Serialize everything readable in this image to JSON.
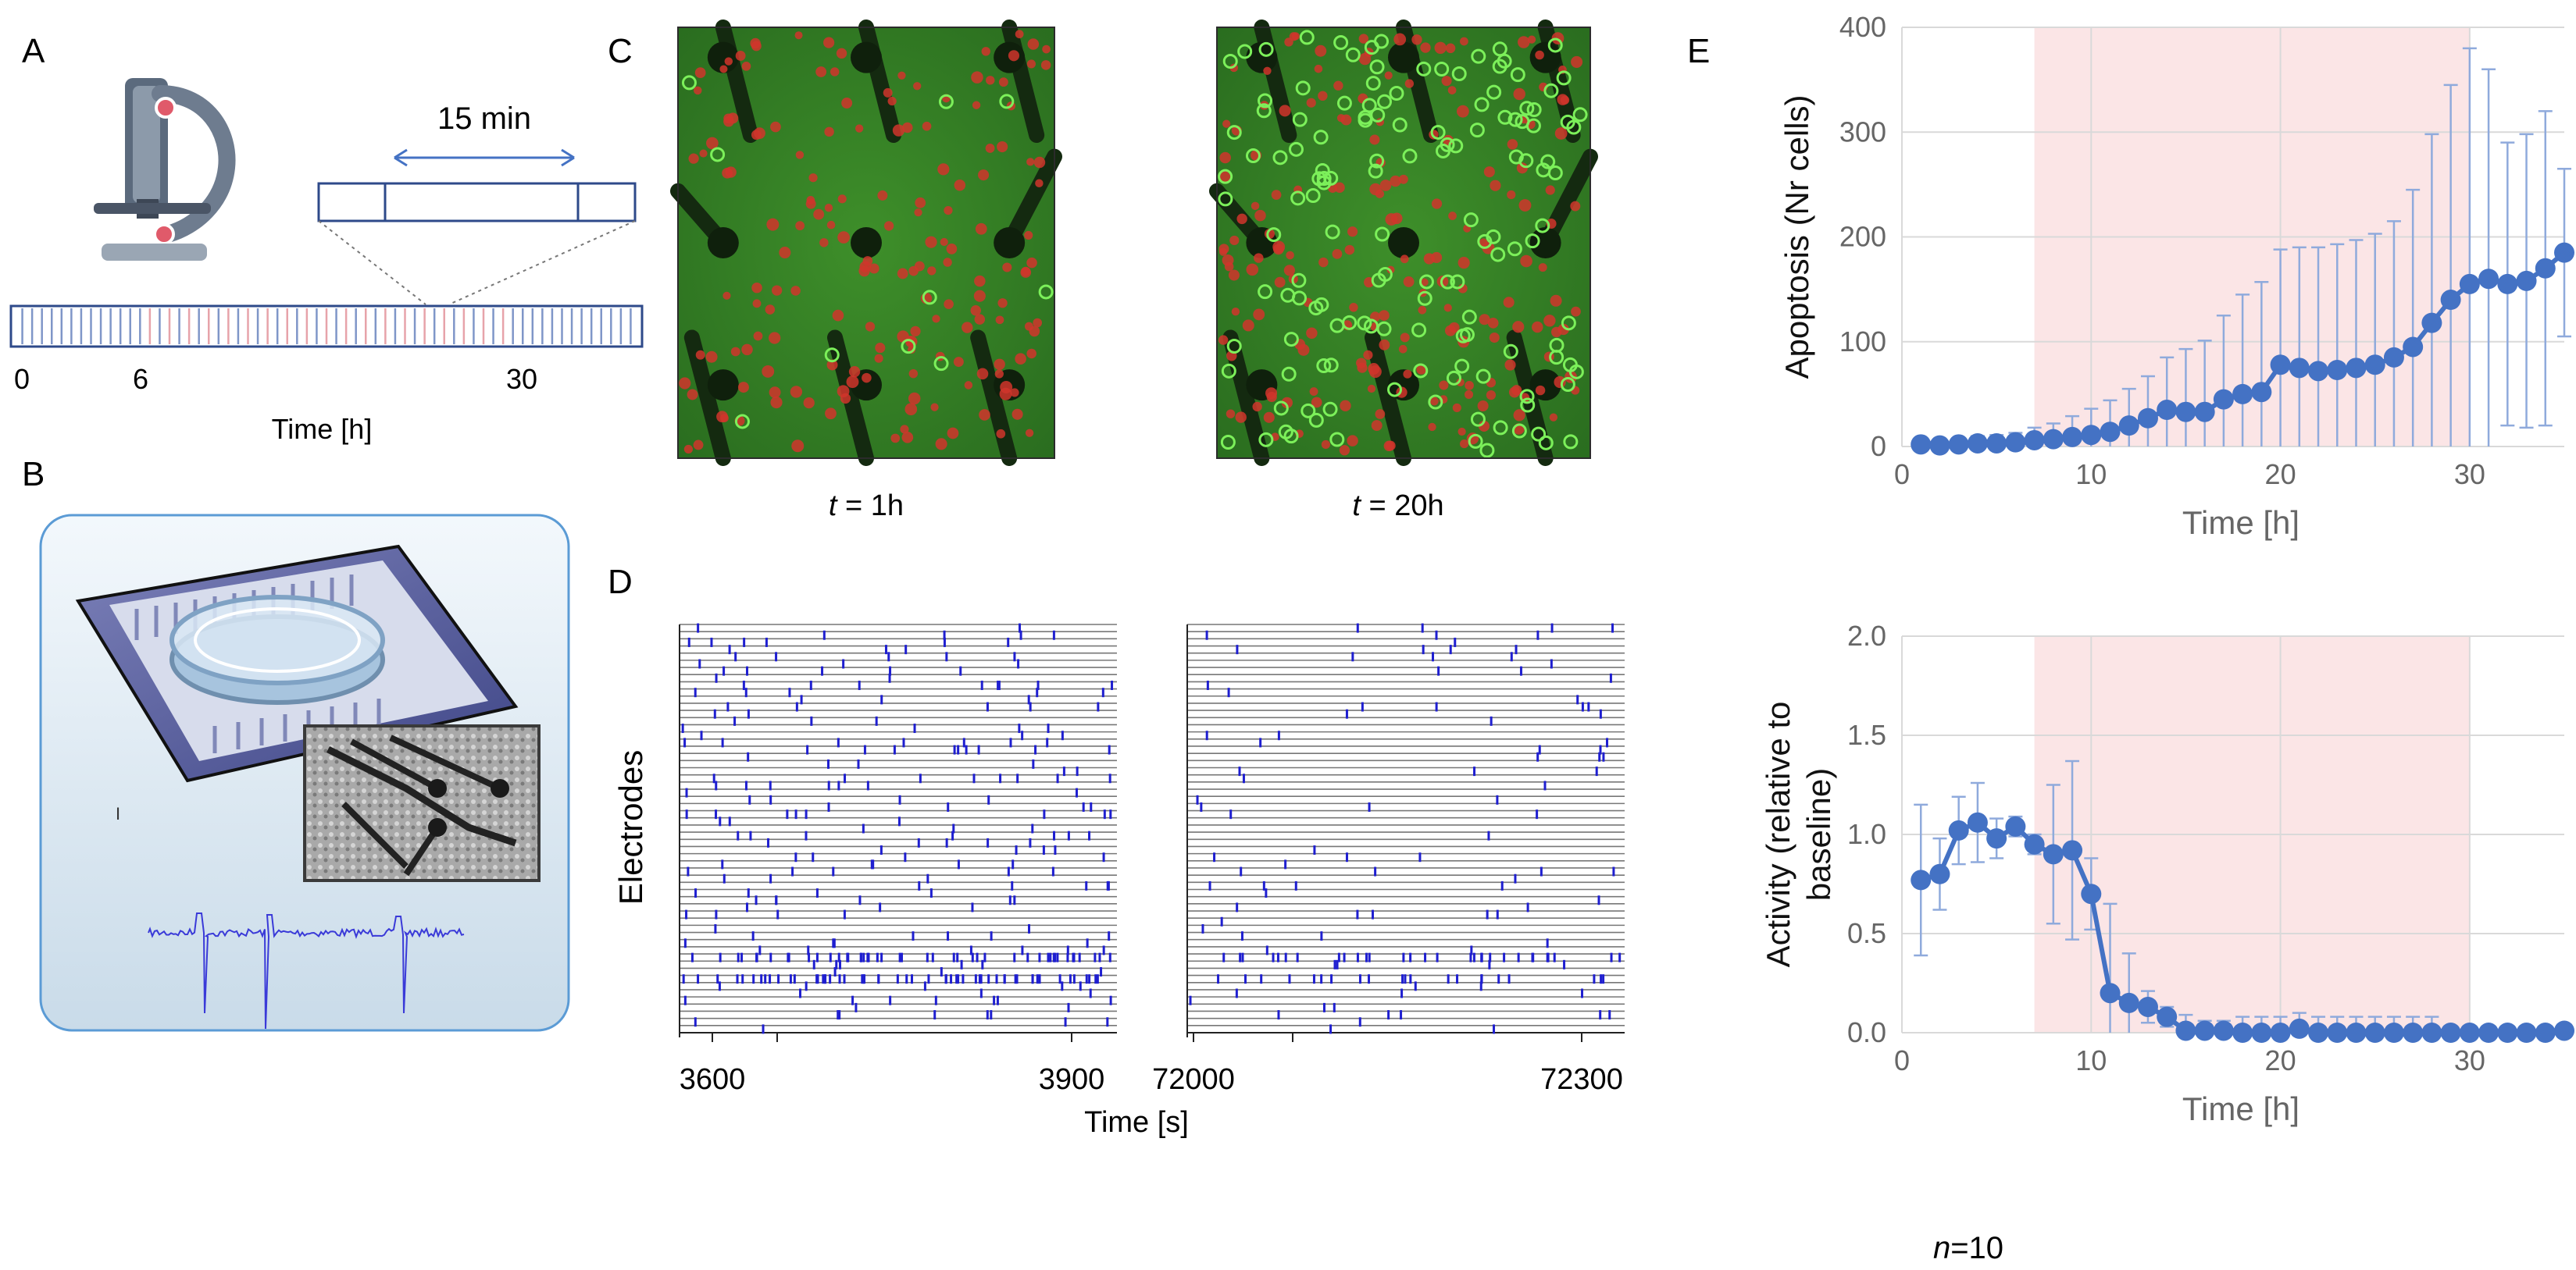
{
  "panels": {
    "A": {
      "letter": "A",
      "interval_label": "15 min",
      "tick_labels": [
        "0",
        "6",
        "30"
      ],
      "axis_label": "Time [h]"
    },
    "B": {
      "letter": "B",
      "mark": "I"
    },
    "C": {
      "letter": "C",
      "t_prefix": "t",
      "captions": [
        " = 1h",
        " = 20h"
      ]
    },
    "D": {
      "letter": "D",
      "ylabel": "Electrodes",
      "xlabel": "Time [s]",
      "left_ticks": [
        "3600",
        "3900"
      ],
      "right_ticks": [
        "72000",
        "72300"
      ]
    },
    "E": {
      "letter": "E",
      "n_italic": "n",
      "n_rest": "=10"
    }
  },
  "colors": {
    "series": "#4472c4",
    "error": "#8faadc",
    "shade": "#fbe5e6",
    "raster_spike": "#1f1fd0",
    "grid": "#d9d9d9"
  },
  "chart_data": [
    {
      "type": "line",
      "title": "",
      "xlabel": "Time [h]",
      "ylabel": "Apoptosis (Nr cells)",
      "xlim": [
        0,
        35
      ],
      "ylim": [
        0,
        400
      ],
      "xticks": [
        0,
        10,
        20,
        30
      ],
      "yticks": [
        0,
        100,
        200,
        300,
        400
      ],
      "shade_x": [
        7,
        30
      ],
      "grid": true,
      "x": [
        1,
        2,
        3,
        4,
        5,
        6,
        7,
        8,
        9,
        10,
        11,
        12,
        13,
        14,
        15,
        16,
        17,
        18,
        19,
        20,
        21,
        22,
        23,
        24,
        25,
        26,
        27,
        28,
        29,
        30,
        31,
        32,
        33,
        34,
        35
      ],
      "series": [
        {
          "name": "Apoptosis",
          "values": [
            2,
            1,
            2,
            3,
            3,
            4,
            6,
            7,
            9,
            11,
            14,
            20,
            27,
            35,
            33,
            33,
            45,
            50,
            52,
            78,
            75,
            72,
            73,
            75,
            78,
            85,
            95,
            118,
            140,
            155,
            160,
            155,
            158,
            170,
            185
          ],
          "error": [
            5,
            5,
            6,
            7,
            8,
            9,
            12,
            15,
            20,
            25,
            30,
            35,
            40,
            50,
            60,
            68,
            80,
            95,
            105,
            110,
            115,
            118,
            120,
            122,
            125,
            130,
            150,
            180,
            205,
            225,
            200,
            135,
            140,
            150,
            80
          ]
        }
      ]
    },
    {
      "type": "line",
      "title": "",
      "xlabel": "Time [h]",
      "ylabel": "Activity (relative to baseline)",
      "xlim": [
        0,
        35
      ],
      "ylim": [
        0,
        2.0
      ],
      "xticks": [
        0,
        10,
        20,
        30
      ],
      "yticks": [
        0.0,
        0.5,
        1.0,
        1.5,
        2.0
      ],
      "ytick_labels": [
        "0.0",
        "0.5",
        "1.0",
        "1.5",
        "2.0"
      ],
      "shade_x": [
        7,
        30
      ],
      "grid": true,
      "x": [
        1,
        2,
        3,
        4,
        5,
        6,
        7,
        8,
        9,
        10,
        11,
        12,
        13,
        14,
        15,
        16,
        17,
        18,
        19,
        20,
        21,
        22,
        23,
        24,
        25,
        26,
        27,
        28,
        29,
        30,
        31,
        32,
        33,
        34,
        35
      ],
      "series": [
        {
          "name": "Activity",
          "values": [
            0.77,
            0.8,
            1.02,
            1.06,
            0.98,
            1.04,
            0.95,
            0.9,
            0.92,
            0.7,
            0.2,
            0.15,
            0.13,
            0.08,
            0.01,
            0.01,
            0.01,
            0.0,
            0.0,
            0.0,
            0.02,
            0.0,
            0.0,
            0.0,
            0.0,
            0.0,
            0.0,
            0.0,
            0.0,
            0.0,
            0.0,
            0.0,
            0.0,
            0.0,
            0.01
          ],
          "error": [
            0.38,
            0.18,
            0.17,
            0.2,
            0.1,
            0.05,
            0.05,
            0.35,
            0.45,
            0.18,
            0.45,
            0.25,
            0.08,
            0.05,
            0.08,
            0.05,
            0.05,
            0.08,
            0.08,
            0.08,
            0.08,
            0.08,
            0.08,
            0.08,
            0.08,
            0.08,
            0.08,
            0.08,
            0.0,
            0.0,
            0.0,
            0.0,
            0.0,
            0.0,
            0.0
          ]
        }
      ]
    }
  ]
}
